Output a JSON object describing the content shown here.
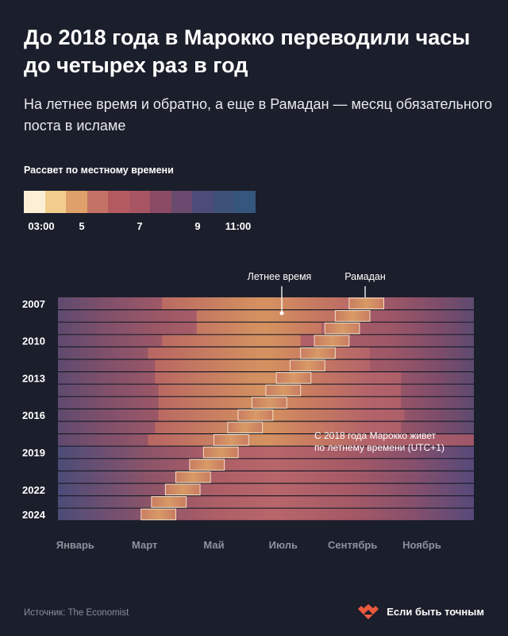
{
  "title": "До 2018 года в Марокко переводили часы до четырех раз в год",
  "subtitle": "На летнее время и обратно, а еще в Рамадан — месяц обязательного поста в исламе",
  "legend": {
    "title": "Рассвет по местному времени",
    "ticks": [
      "03:00",
      "5",
      "7",
      "9",
      "11:00"
    ],
    "tick_hours": [
      3,
      5,
      7,
      9,
      11
    ],
    "colors": [
      "#fcefd6",
      "#f3cd8e",
      "#e0a06a",
      "#c47266",
      "#b35a60",
      "#a85563",
      "#8a4a63",
      "#6a4a6e",
      "#4d4c78",
      "#3e5178",
      "#35567d"
    ]
  },
  "footer": {
    "source": "Источник: The Economist",
    "brand": "Если быть точным"
  },
  "chart_data": {
    "type": "heatmap",
    "title": "",
    "y_years": [
      2007,
      2008,
      2009,
      2010,
      2011,
      2012,
      2013,
      2014,
      2015,
      2016,
      2017,
      2018,
      2019,
      2020,
      2021,
      2022,
      2023,
      2024
    ],
    "y_tick_labels": [
      "2007",
      "2010",
      "2013",
      "2016",
      "2019",
      "2022",
      "2024"
    ],
    "y_tick_years": [
      2007,
      2010,
      2013,
      2016,
      2019,
      2022,
      2024
    ],
    "x_tick_labels": [
      "Январь",
      "Март",
      "Май",
      "Июль",
      "Сентябрь",
      "Ноябрь"
    ],
    "x_tick_months": [
      1,
      3,
      5,
      7,
      9,
      11
    ],
    "value": "sunrise local time (hours)",
    "summer_time_periods": [
      {
        "year": 2007,
        "start": 4.0,
        "end": 10.0
      },
      {
        "year": 2008,
        "start": 5.0,
        "end": 9.0
      },
      {
        "year": 2009,
        "start": 5.0,
        "end": 8.6
      },
      {
        "year": 2010,
        "start": 4.0,
        "end": 8.0
      },
      {
        "year": 2011,
        "start": 3.6,
        "end": 10.0
      },
      {
        "year": 2012,
        "start": 3.8,
        "end": 10.0
      },
      {
        "year": 2013,
        "start": 3.8,
        "end": 10.9
      },
      {
        "year": 2014,
        "start": 3.9,
        "end": 10.9
      },
      {
        "year": 2015,
        "start": 3.9,
        "end": 10.9
      },
      {
        "year": 2016,
        "start": 3.9,
        "end": 11.0
      },
      {
        "year": 2017,
        "start": 3.8,
        "end": 10.9
      },
      {
        "year": 2018,
        "start": 3.6,
        "end": 13.0
      },
      {
        "year": 2019,
        "start": 1.0,
        "end": 13.0
      },
      {
        "year": 2020,
        "start": 1.0,
        "end": 13.0
      },
      {
        "year": 2021,
        "start": 1.0,
        "end": 13.0
      },
      {
        "year": 2022,
        "start": 1.0,
        "end": 13.0
      },
      {
        "year": 2023,
        "start": 1.0,
        "end": 13.0
      },
      {
        "year": 2024,
        "start": 1.0,
        "end": 13.0
      }
    ],
    "ramadan_periods": [
      {
        "year": 2007,
        "start": 9.4,
        "end": 10.4
      },
      {
        "year": 2008,
        "start": 9.0,
        "end": 10.0
      },
      {
        "year": 2009,
        "start": 8.7,
        "end": 9.7
      },
      {
        "year": 2010,
        "start": 8.4,
        "end": 9.4
      },
      {
        "year": 2011,
        "start": 8.0,
        "end": 9.0
      },
      {
        "year": 2012,
        "start": 7.7,
        "end": 8.7
      },
      {
        "year": 2013,
        "start": 7.3,
        "end": 8.3
      },
      {
        "year": 2014,
        "start": 7.0,
        "end": 8.0
      },
      {
        "year": 2015,
        "start": 6.6,
        "end": 7.6
      },
      {
        "year": 2016,
        "start": 6.2,
        "end": 7.2
      },
      {
        "year": 2017,
        "start": 5.9,
        "end": 6.9
      },
      {
        "year": 2018,
        "start": 5.5,
        "end": 6.5
      },
      {
        "year": 2019,
        "start": 5.2,
        "end": 6.2
      },
      {
        "year": 2020,
        "start": 4.8,
        "end": 5.8
      },
      {
        "year": 2021,
        "start": 4.4,
        "end": 5.4
      },
      {
        "year": 2022,
        "start": 4.1,
        "end": 5.1
      },
      {
        "year": 2023,
        "start": 3.7,
        "end": 4.7
      },
      {
        "year": 2024,
        "start": 3.4,
        "end": 4.4
      }
    ],
    "annotations": [
      {
        "text": "Летнее время"
      },
      {
        "text": "Рамадан"
      },
      {
        "text": "С 2018 года Марокко живет",
        "text2": "по летнему времени (UTC+1)"
      }
    ]
  }
}
